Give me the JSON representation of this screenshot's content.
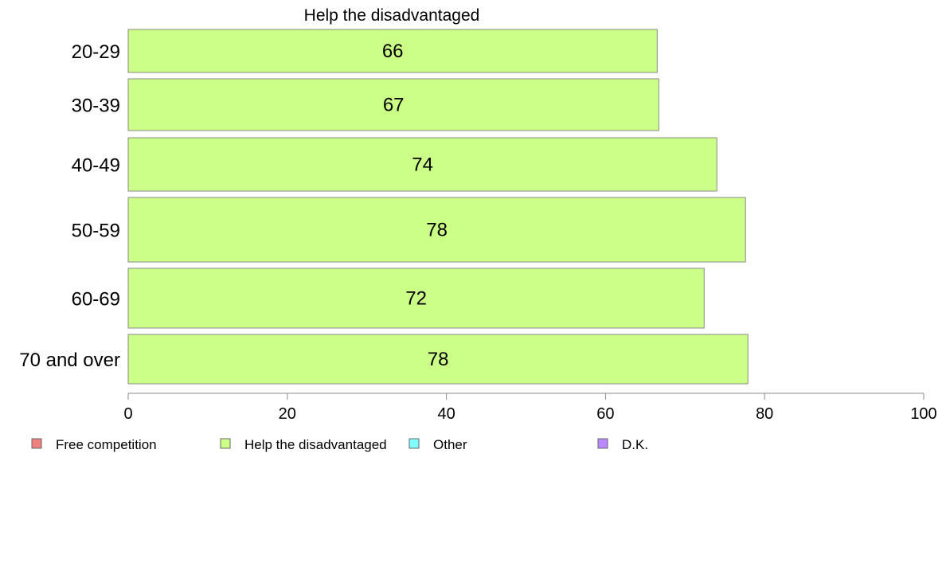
{
  "chart_data": {
    "type": "bar",
    "orientation": "horizontal",
    "title": "Help the disadvantaged",
    "categories": [
      "20-29",
      "30-39",
      "40-49",
      "50-59",
      "60-69",
      "70 and over"
    ],
    "values": [
      66.5,
      66.7,
      74.0,
      77.6,
      72.4,
      77.9
    ],
    "value_labels": [
      "66",
      "67",
      "74",
      "78",
      "72",
      "78"
    ],
    "bar_color": "#ccff88",
    "xlim": [
      0,
      100
    ],
    "xticks": [
      "0",
      "20",
      "40",
      "60",
      "80",
      "100"
    ],
    "legend": [
      {
        "label": "Free competition",
        "color": "#f08080"
      },
      {
        "label": "Help the disadvantaged",
        "color": "#ccff88"
      },
      {
        "label": "Other",
        "color": "#80ffff"
      },
      {
        "label": "D.K.",
        "color": "#bb88ff"
      }
    ]
  }
}
